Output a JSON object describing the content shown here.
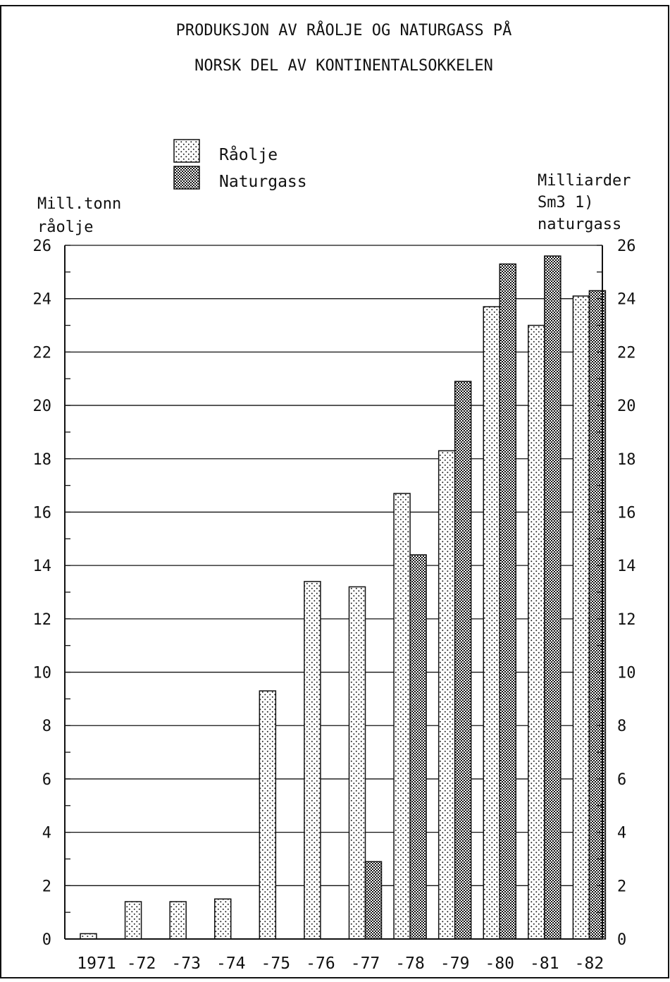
{
  "chart_data": {
    "type": "bar",
    "title_lines": [
      "PRODUKSJON AV RÅOLJE OG NATURGASS PÅ",
      "NORSK DEL AV KONTINENTALSOKKELEN"
    ],
    "ylabel_left_lines": [
      "Mill.tonn",
      "råolje"
    ],
    "ylabel_right_lines": [
      "Milliarder",
      "Sm3    1)",
      "naturgass"
    ],
    "categories": [
      "1971",
      "-72",
      "-73",
      "-74",
      "-75",
      "-76",
      "-77",
      "-78",
      "-79",
      "-80",
      "-81",
      "-82"
    ],
    "series": [
      {
        "name": "Råolje",
        "values": [
          0.2,
          1.4,
          1.4,
          1.5,
          9.3,
          13.4,
          13.2,
          16.7,
          18.3,
          23.7,
          23.0,
          24.1
        ]
      },
      {
        "name": "Naturgass",
        "values": [
          null,
          null,
          null,
          null,
          null,
          null,
          2.9,
          14.4,
          20.9,
          25.3,
          25.6,
          24.3
        ]
      }
    ],
    "ylim": [
      0,
      26
    ],
    "yticks": [
      0,
      2,
      4,
      6,
      8,
      10,
      12,
      14,
      16,
      18,
      20,
      22,
      24,
      26
    ],
    "legend_position": "top-left",
    "grid": true
  }
}
